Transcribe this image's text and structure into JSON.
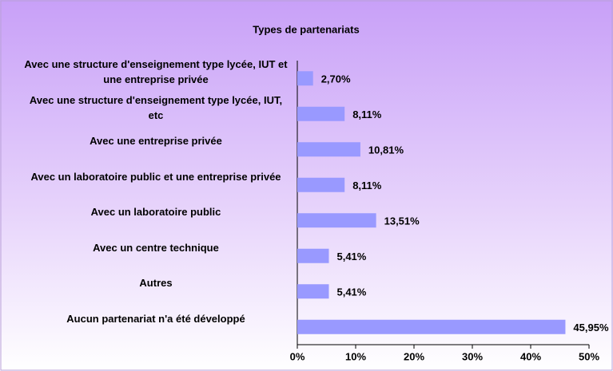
{
  "chart_data": {
    "type": "bar",
    "orientation": "horizontal",
    "title": "Types de partenariats",
    "categories": [
      "Avec une structure d'enseignement type lycée, IUT et une entreprise privée",
      "Avec une structure d'enseignement type lycée, IUT, etc",
      "Avec une entreprise privée",
      "Avec un laboratoire public et une entreprise privée",
      "Avec un laboratoire public",
      "Avec un centre technique",
      "Autres",
      "Aucun partenariat n'a été développé"
    ],
    "values": [
      2.7,
      8.11,
      10.81,
      8.11,
      13.51,
      5.41,
      5.41,
      45.95
    ],
    "value_labels": [
      "2,70%",
      "8,11%",
      "10,81%",
      "8,11%",
      "13,51%",
      "5,41%",
      "5,41%",
      "45,95%"
    ],
    "color": "#9999ff",
    "xlim": [
      0,
      50
    ],
    "xticks": [
      {
        "value": 0,
        "label": "0%"
      },
      {
        "value": 10,
        "label": "10%"
      },
      {
        "value": 20,
        "label": "20%"
      },
      {
        "value": 30,
        "label": "30%"
      },
      {
        "value": 40,
        "label": "40%"
      },
      {
        "value": 50,
        "label": "50%"
      }
    ],
    "grid": false
  }
}
